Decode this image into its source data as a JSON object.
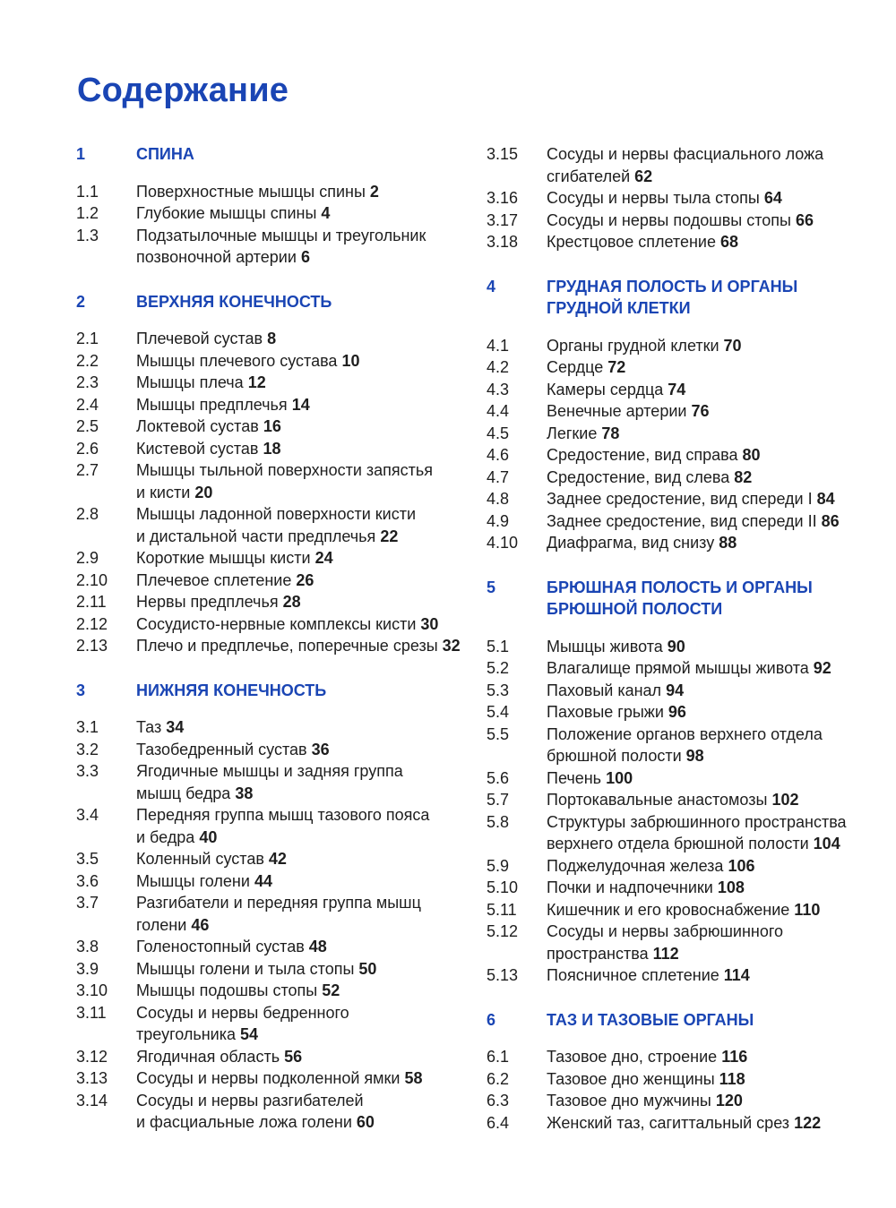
{
  "title": "Содержание",
  "columns": [
    [
      {
        "type": "section",
        "num": "1",
        "title": "СПИНА"
      },
      {
        "num": "1.1",
        "text": "Поверхностные мышцы спины",
        "page": "2"
      },
      {
        "num": "1.2",
        "text": "Глубокие мышцы спины",
        "page": "4"
      },
      {
        "num": "1.3",
        "text": "Подзатылочные мышцы и треугольник\nпозвоночной артерии",
        "page": "6"
      },
      {
        "type": "section",
        "num": "2",
        "title": "ВЕРХНЯЯ КОНЕЧНОСТЬ"
      },
      {
        "num": "2.1",
        "text": "Плечевой сустав",
        "page": "8"
      },
      {
        "num": "2.2",
        "text": "Мышцы плечевого сустава",
        "page": "10"
      },
      {
        "num": "2.3",
        "text": "Мышцы плеча",
        "page": "12"
      },
      {
        "num": "2.4",
        "text": "Мышцы предплечья",
        "page": "14"
      },
      {
        "num": "2.5",
        "text": "Локтевой сустав",
        "page": "16"
      },
      {
        "num": "2.6",
        "text": "Кистевой сустав",
        "page": "18"
      },
      {
        "num": "2.7",
        "text": "Мышцы тыльной поверхности запястья\nи кисти",
        "page": "20"
      },
      {
        "num": "2.8",
        "text": "Мышцы ладонной поверхности кисти\nи дистальной части предплечья",
        "page": "22"
      },
      {
        "num": "2.9",
        "text": "Короткие мышцы кисти",
        "page": "24"
      },
      {
        "num": "2.10",
        "text": "Плечевое сплетение",
        "page": "26"
      },
      {
        "num": "2.11",
        "text": "Нервы предплечья",
        "page": "28"
      },
      {
        "num": "2.12",
        "text": "Сосудисто-нервные комплексы кисти",
        "page": "30"
      },
      {
        "num": "2.13",
        "text": "Плечо и предплечье, поперечные срезы",
        "page": "32"
      },
      {
        "type": "section",
        "num": "3",
        "title": "НИЖНЯЯ КОНЕЧНОСТЬ"
      },
      {
        "num": "3.1",
        "text": "Таз",
        "page": "34"
      },
      {
        "num": "3.2",
        "text": "Тазобедренный сустав",
        "page": "36"
      },
      {
        "num": "3.3",
        "text": "Ягодичные мышцы и задняя группа\nмышц бедра",
        "page": "38"
      },
      {
        "num": "3.4",
        "text": "Передняя группа мышц тазового пояса\nи бедра",
        "page": "40"
      },
      {
        "num": "3.5",
        "text": "Коленный сустав",
        "page": "42"
      },
      {
        "num": "3.6",
        "text": "Мышцы голени",
        "page": "44"
      },
      {
        "num": "3.7",
        "text": "Разгибатели и передняя группа мышц\nголени",
        "page": "46"
      },
      {
        "num": "3.8",
        "text": "Голеностопный сустав",
        "page": "48"
      },
      {
        "num": "3.9",
        "text": "Мышцы голени и тыла стопы",
        "page": "50"
      },
      {
        "num": "3.10",
        "text": "Мышцы подошвы стопы",
        "page": "52"
      },
      {
        "num": "3.11",
        "text": "Сосуды и нервы бедренного\nтреугольника",
        "page": "54"
      },
      {
        "num": "3.12",
        "text": "Ягодичная область",
        "page": "56"
      },
      {
        "num": "3.13",
        "text": "Сосуды и нервы подколенной ямки",
        "page": "58"
      },
      {
        "num": "3.14",
        "text": "Сосуды и нервы разгибателей\nи фасциальные ложа голени",
        "page": "60"
      }
    ],
    [
      {
        "num": "3.15",
        "text": "Сосуды и нервы фасциального ложа\nсгибателей",
        "page": "62"
      },
      {
        "num": "3.16",
        "text": "Сосуды и нервы тыла стопы",
        "page": "64"
      },
      {
        "num": "3.17",
        "text": "Сосуды и нервы подошвы стопы",
        "page": "66"
      },
      {
        "num": "3.18",
        "text": "Крестцовое сплетение",
        "page": "68"
      },
      {
        "type": "section",
        "num": "4",
        "title": "ГРУДНАЯ ПОЛОСТЬ И ОРГАНЫ\nГРУДНОЙ КЛЕТКИ"
      },
      {
        "num": "4.1",
        "text": "Органы грудной клетки",
        "page": "70"
      },
      {
        "num": "4.2",
        "text": "Сердце",
        "page": "72"
      },
      {
        "num": "4.3",
        "text": "Камеры сердца",
        "page": "74"
      },
      {
        "num": "4.4",
        "text": "Венечные артерии",
        "page": "76"
      },
      {
        "num": "4.5",
        "text": "Легкие",
        "page": "78"
      },
      {
        "num": "4.6",
        "text": "Средостение, вид справа",
        "page": "80"
      },
      {
        "num": "4.7",
        "text": "Средостение, вид слева",
        "page": "82"
      },
      {
        "num": "4.8",
        "text": "Заднее средостение, вид спереди I",
        "page": "84"
      },
      {
        "num": "4.9",
        "text": "Заднее средостение, вид спереди II",
        "page": "86"
      },
      {
        "num": "4.10",
        "text": "Диафрагма, вид снизу",
        "page": "88"
      },
      {
        "type": "section",
        "num": "5",
        "title": "БРЮШНАЯ ПОЛОСТЬ И ОРГАНЫ\nБРЮШНОЙ ПОЛОСТИ"
      },
      {
        "num": "5.1",
        "text": "Мышцы живота",
        "page": "90"
      },
      {
        "num": "5.2",
        "text": "Влагалище прямой мышцы живота",
        "page": "92"
      },
      {
        "num": "5.3",
        "text": "Паховый канал",
        "page": "94"
      },
      {
        "num": "5.4",
        "text": "Паховые грыжи",
        "page": "96"
      },
      {
        "num": "5.5",
        "text": "Положение органов верхнего отдела\nбрюшной полости",
        "page": "98"
      },
      {
        "num": "5.6",
        "text": "Печень",
        "page": "100"
      },
      {
        "num": "5.7",
        "text": "Портокавальные анастомозы",
        "page": "102"
      },
      {
        "num": "5.8",
        "text": "Структуры забрюшинного пространства\nверхнего отдела брюшной полости",
        "page": "104"
      },
      {
        "num": "5.9",
        "text": "Поджелудочная железа",
        "page": "106"
      },
      {
        "num": "5.10",
        "text": "Почки и надпочечники",
        "page": "108"
      },
      {
        "num": "5.11",
        "text": "Кишечник и его кровоснабжение",
        "page": "110"
      },
      {
        "num": "5.12",
        "text": "Сосуды и нервы забрюшинного\nпространства",
        "page": "112"
      },
      {
        "num": "5.13",
        "text": "Поясничное сплетение",
        "page": "114"
      },
      {
        "type": "section",
        "num": "6",
        "title": "ТАЗ И ТАЗОВЫЕ ОРГАНЫ"
      },
      {
        "num": "6.1",
        "text": "Тазовое дно, строение",
        "page": "116"
      },
      {
        "num": "6.2",
        "text": "Тазовое дно женщины",
        "page": "118"
      },
      {
        "num": "6.3",
        "text": "Тазовое дно мужчины",
        "page": "120"
      },
      {
        "num": "6.4",
        "text": "Женский таз, сагиттальный срез",
        "page": "122"
      }
    ]
  ]
}
